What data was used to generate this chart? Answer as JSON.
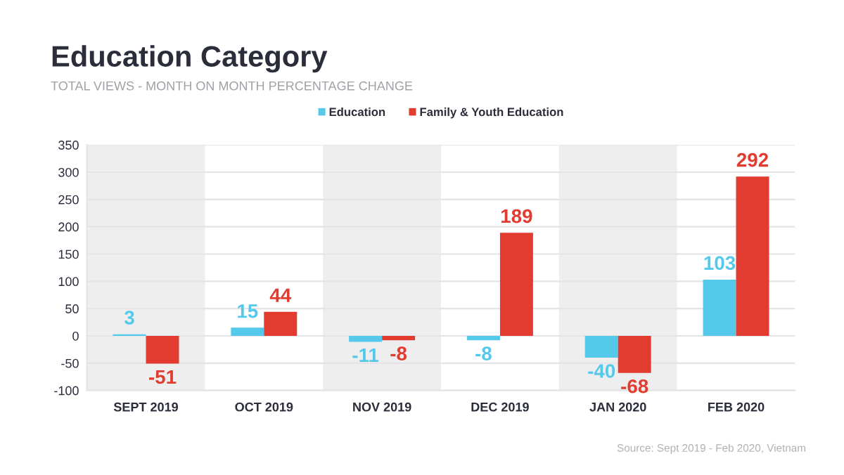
{
  "chart_data": {
    "type": "bar",
    "title": "Education Category",
    "subtitle": "TOTAL VIEWS - MONTH ON MONTH PERCENTAGE CHANGE",
    "categories": [
      "SEPT 2019",
      "OCT 2019",
      "NOV 2019",
      "DEC 2019",
      "JAN 2020",
      "FEB 2020"
    ],
    "series": [
      {
        "name": "Education",
        "color": "#55c9ea",
        "values": [
          3,
          15,
          -11,
          -8,
          -40,
          103
        ]
      },
      {
        "name": "Family & Youth Education",
        "color": "#e23b30",
        "values": [
          -51,
          44,
          -8,
          189,
          -68,
          292
        ]
      }
    ],
    "ylim": [
      -100,
      350
    ],
    "yticks": [
      -100,
      -50,
      0,
      50,
      100,
      150,
      200,
      250,
      300,
      350
    ],
    "grid": "y",
    "legend": "top",
    "data_labels": true,
    "bands": [
      {
        "axis": "x",
        "from": "SEPT 2019",
        "to": "SEPT 2019",
        "color": "#eeeeef"
      },
      {
        "axis": "x",
        "from": "NOV 2019",
        "to": "NOV 2019",
        "color": "#eeeeef"
      },
      {
        "axis": "x",
        "from": "JAN 2020",
        "to": "JAN 2020",
        "color": "#eeeeef"
      }
    ],
    "annotations": [
      "Source: Sept 2019 - Feb 2020, Vietnam"
    ]
  }
}
